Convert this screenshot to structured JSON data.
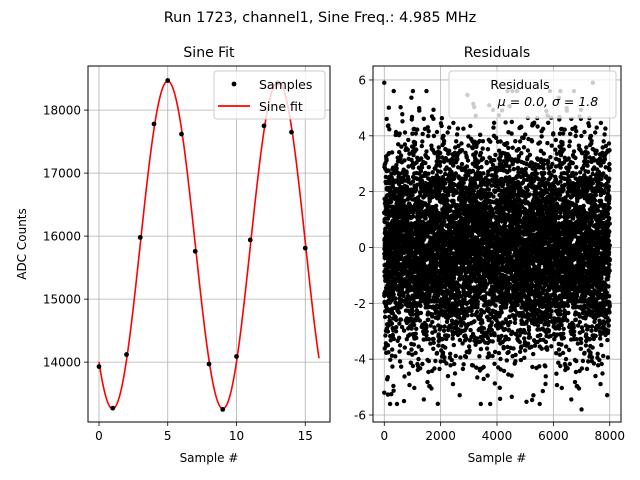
{
  "figure_title": "Run 1723, channel1, Sine Freq.: 4.985 MHz",
  "chart_data": [
    {
      "type": "scatter+line",
      "title": "Sine Fit",
      "xlabel": "Sample #",
      "ylabel": "ADC Counts",
      "xlim": [
        -0.8,
        16.8
      ],
      "ylim": [
        13050,
        18700
      ],
      "xticks": [
        0,
        5,
        10,
        15
      ],
      "yticks": [
        14000,
        15000,
        16000,
        17000,
        18000
      ],
      "grid": true,
      "legend_position": "top-right",
      "series": [
        {
          "name": "Samples",
          "kind": "scatter",
          "color": "#000000",
          "x": [
            0,
            1,
            2,
            3,
            4,
            5,
            6,
            7,
            8,
            9,
            10,
            11,
            12,
            13,
            14,
            15
          ],
          "y": [
            13930,
            13270,
            14120,
            15980,
            17780,
            18470,
            17620,
            15760,
            13970,
            13250,
            14090,
            15940,
            17750,
            18430,
            17650,
            15810
          ]
        },
        {
          "name": "Sine fit",
          "kind": "line",
          "color": "#ff0000",
          "x_range": [
            0,
            16
          ],
          "offset": 15860,
          "amplitude": 2600,
          "period_samples": 8.02,
          "peak_at_x": 5.0
        }
      ]
    },
    {
      "type": "scatter",
      "title": "Residuals",
      "xlabel": "Sample #",
      "ylabel": "",
      "xlim": [
        -400,
        8400
      ],
      "ylim": [
        -6.25,
        6.5
      ],
      "xticks": [
        0,
        2000,
        4000,
        6000,
        8000
      ],
      "yticks": [
        -6,
        -4,
        -2,
        0,
        2,
        4,
        6
      ],
      "grid": true,
      "legend_position": "top-right",
      "series": [
        {
          "name": "Residuals",
          "kind": "scatter",
          "color": "#000000",
          "count": 8000,
          "x_range": [
            0,
            8000
          ],
          "mean": 0.0,
          "std": 1.8,
          "outliers": [
            [
              0,
              5.9
            ],
            [
              7000,
              -5.8
            ],
            [
              1900,
              -5.6
            ],
            [
              7400,
              5.9
            ],
            [
              700,
              -5.5
            ],
            [
              0,
              -5.2
            ]
          ]
        }
      ],
      "legend_lines": [
        "Residuals",
        "μ = 0.0, σ = 1.8"
      ]
    }
  ]
}
